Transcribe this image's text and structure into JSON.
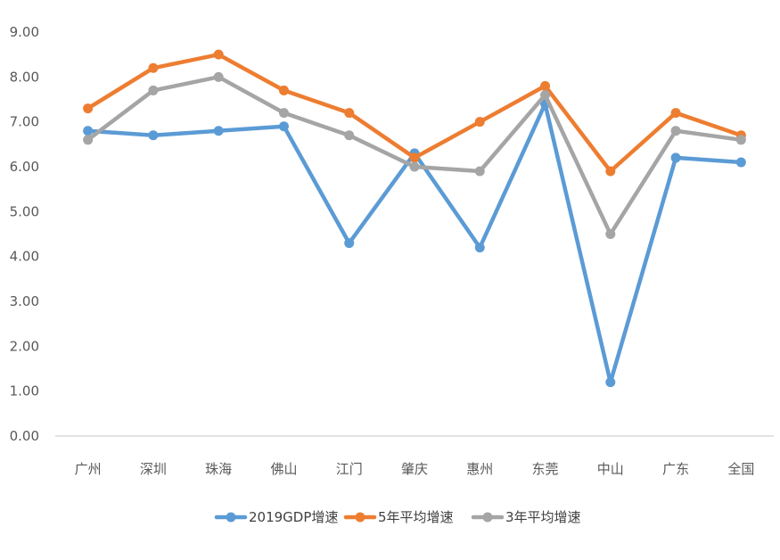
{
  "chart_data": {
    "type": "line",
    "categories": [
      "广州",
      "深圳",
      "珠海",
      "佛山",
      "江门",
      "肇庆",
      "惠州",
      "东莞",
      "中山",
      "广东",
      "全国"
    ],
    "ylim": [
      0,
      9
    ],
    "yticks": [
      "0.00",
      "1.00",
      "2.00",
      "3.00",
      "4.00",
      "5.00",
      "6.00",
      "7.00",
      "8.00",
      "9.00"
    ],
    "grid": false,
    "legend_position": "bottom",
    "series": [
      {
        "name": "2019GDP增速",
        "color": "#5B9BD5",
        "values": [
          6.8,
          6.7,
          6.8,
          6.9,
          4.3,
          6.3,
          4.2,
          7.4,
          1.2,
          6.2,
          6.1
        ]
      },
      {
        "name": "5年平均增速",
        "color": "#ED7D31",
        "values": [
          7.3,
          8.2,
          8.5,
          7.7,
          7.2,
          6.2,
          7.0,
          7.8,
          5.9,
          7.2,
          6.7
        ]
      },
      {
        "name": "3年平均增速",
        "color": "#A5A5A5",
        "values": [
          6.6,
          7.7,
          8.0,
          7.2,
          6.7,
          6.0,
          5.9,
          7.6,
          4.5,
          6.8,
          6.6
        ]
      }
    ]
  }
}
